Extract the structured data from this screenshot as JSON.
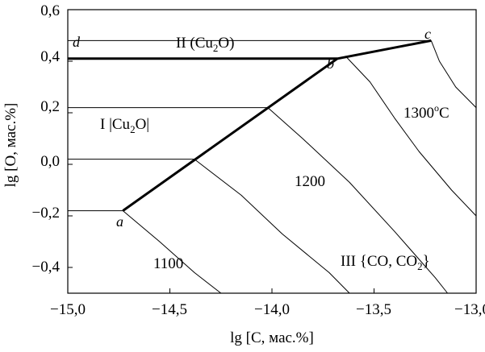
{
  "axes": {
    "xlabel": "lg [C, мас.%]",
    "ylabel": "lg [O, мас.%]",
    "x_ticks": [
      "−15,0",
      "−14,5",
      "−14,0",
      "−13,5",
      "−13,0"
    ],
    "y_ticks": [
      "0,6",
      "0,4",
      "0,2",
      "0,0",
      "−0,2",
      "−0,4"
    ]
  },
  "region_labels": {
    "region_ii": "II (Cu",
    "region_ii_sub": "2",
    "region_ii_tail": "O)",
    "region_i": "I |Cu",
    "region_i_sub": "2",
    "region_i_tail": "O|",
    "region_iii": "III {CO, CO",
    "region_iii_sub": "2",
    "region_iii_tail": "}"
  },
  "point_labels": {
    "a": "a",
    "b": "b",
    "c": "c",
    "d": "d"
  },
  "isotherm_labels": {
    "t1100": "1100",
    "t1200": "1200",
    "t1300": "1300",
    "t1300_sup": "o",
    "t1300_unit": "C"
  },
  "chart_data": {
    "type": "line",
    "xlim": [
      -15.0,
      -13.0
    ],
    "ylim": [
      -0.5,
      0.6
    ],
    "boundary_lines": [
      {
        "from": "a",
        "to": "b",
        "points": [
          [
            -14.73,
            -0.18
          ],
          [
            -13.68,
            0.41
          ]
        ]
      },
      {
        "from": "b",
        "to": "c",
        "points": [
          [
            -13.68,
            0.41
          ],
          [
            -13.22,
            0.48
          ]
        ]
      },
      {
        "from": "d",
        "to": "b",
        "points": [
          [
            -15.0,
            0.41
          ],
          [
            -13.68,
            0.41
          ]
        ]
      }
    ],
    "isotherms": [
      {
        "label": "1100",
        "points": [
          [
            -14.73,
            -0.18
          ],
          [
            -14.55,
            -0.3
          ],
          [
            -14.38,
            -0.42
          ],
          [
            -14.25,
            -0.5
          ]
        ]
      },
      {
        "label": "1200",
        "points": [
          [
            -14.38,
            0.02
          ],
          [
            -14.15,
            -0.12
          ],
          [
            -13.95,
            -0.27
          ],
          [
            -13.72,
            -0.42
          ],
          [
            -13.62,
            -0.5
          ]
        ]
      },
      {
        "label": "1200",
        "points": [
          [
            -14.02,
            0.22
          ],
          [
            -13.85,
            0.1
          ],
          [
            -13.62,
            -0.07
          ],
          [
            -13.4,
            -0.26
          ],
          [
            -13.2,
            -0.44
          ],
          [
            -13.14,
            -0.5
          ]
        ]
      },
      {
        "label": "1300",
        "points": [
          [
            -13.64,
            0.42
          ],
          [
            -13.52,
            0.32
          ],
          [
            -13.4,
            0.18
          ],
          [
            -13.28,
            0.05
          ],
          [
            -13.12,
            -0.1
          ],
          [
            -13.0,
            -0.2
          ]
        ]
      },
      {
        "label": "1300",
        "points": [
          [
            -13.22,
            0.48
          ],
          [
            -13.18,
            0.4
          ],
          [
            -13.1,
            0.3
          ],
          [
            -13.0,
            0.22
          ]
        ]
      }
    ],
    "horizontal_lines": [
      {
        "y": 0.48,
        "x_range": [
          -15.0,
          -13.22
        ]
      },
      {
        "y": 0.22,
        "x_range": [
          -15.0,
          -14.02
        ]
      },
      {
        "y": 0.02,
        "x_range": [
          -15.0,
          -14.38
        ]
      },
      {
        "y": -0.18,
        "x_range": [
          -15.0,
          -14.73
        ]
      }
    ]
  }
}
